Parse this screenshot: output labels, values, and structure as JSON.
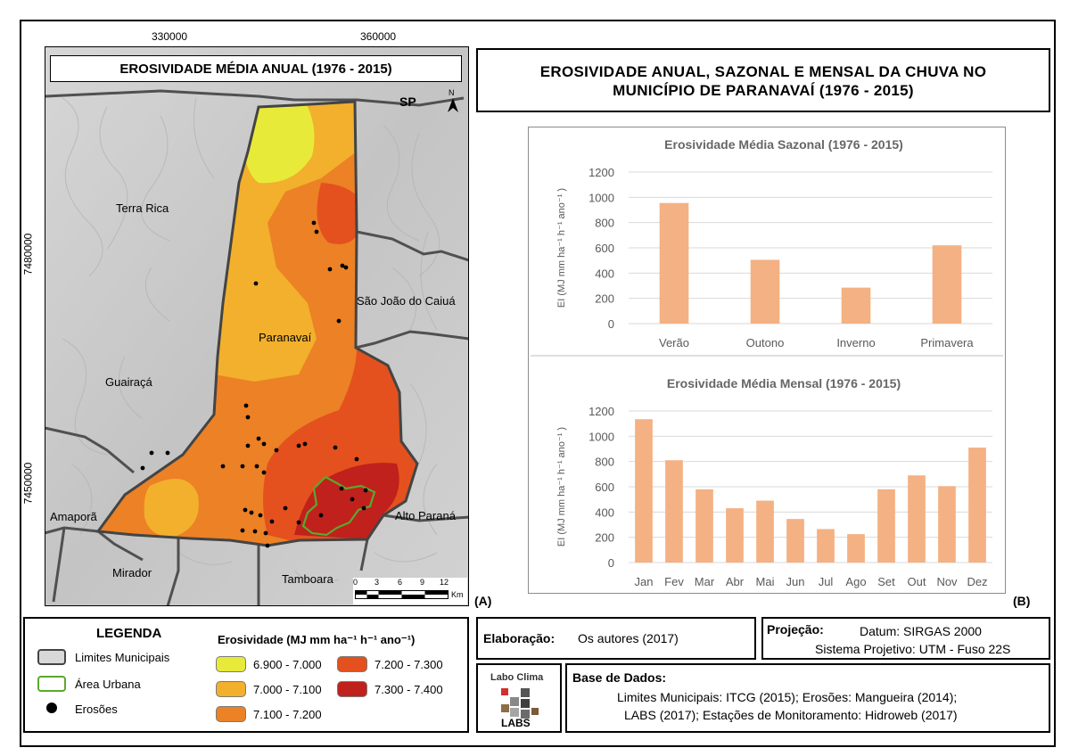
{
  "map": {
    "title": "EROSIVIDADE MÉDIA ANUAL (1976 - 2015)",
    "coords_top": [
      "330000",
      "360000"
    ],
    "coords_left": [
      "7480000",
      "7450000"
    ],
    "panel_label": "(A)",
    "north_label": "N",
    "scale_labels": [
      "0",
      "3",
      "6",
      "9",
      "12"
    ],
    "scale_unit": "Km",
    "places": {
      "sp": "SP",
      "terra_rica": "Terra Rica",
      "sao_joao": "São João do Caiuá",
      "paranavai": "Paranavaí",
      "guairaca": "Guairaçá",
      "amapora": "Amaporã",
      "alto_parana": "Alto Paraná",
      "mirador": "Mirador",
      "tamboara": "Tamboara"
    },
    "colors": {
      "c1": "#e8ea3a",
      "c2": "#f2b02c",
      "c3": "#ec8126",
      "c4": "#e4511e",
      "c5": "#c0211c",
      "urban": "#5aa830",
      "relief": "#c8c8c8"
    }
  },
  "main_title": {
    "line1": "EROSIVIDADE ANUAL, SAZONAL E MENSAL DA CHUVA NO",
    "line2": "MUNICÍPIO DE PARANAVAÍ  (1976 - 2015)"
  },
  "charts_panel_label": "(B)",
  "chart_data": [
    {
      "type": "bar",
      "title": "Erosividade  Média Sazonal (1976 - 2015)",
      "ylabel": "EI (MJ mm ha⁻¹ h⁻¹ ano⁻¹ )",
      "categories": [
        "Verão",
        "Outono",
        "Inverno",
        "Primavera"
      ],
      "values": [
        955,
        505,
        285,
        620
      ],
      "ylim": [
        0,
        1200
      ],
      "yticks": [
        "0",
        "200",
        "400",
        "600",
        "800",
        "1000",
        "1200"
      ],
      "grid": true,
      "color": "#f4b183"
    },
    {
      "type": "bar",
      "title": "Erosividade  Média Mensal (1976 - 2015)",
      "ylabel": "EI (MJ mm ha⁻¹ h⁻¹ ano⁻¹ )",
      "categories": [
        "Jan",
        "Fev",
        "Mar",
        "Abr",
        "Mai",
        "Jun",
        "Jul",
        "Ago",
        "Set",
        "Out",
        "Nov",
        "Dez"
      ],
      "values": [
        1135,
        810,
        580,
        430,
        490,
        345,
        265,
        225,
        580,
        690,
        605,
        910
      ],
      "ylim": [
        0,
        1200
      ],
      "yticks": [
        "0",
        "200",
        "400",
        "600",
        "800",
        "1000",
        "1200"
      ],
      "grid": true,
      "color": "#f4b183"
    }
  ],
  "legend": {
    "title": "LEGENDA",
    "limits": "Limites Municipais",
    "urban": "Área Urbana",
    "erosions": "Erosões",
    "eros_title": "Erosividade (MJ mm ha⁻¹ h⁻¹ ano⁻¹)",
    "classes": [
      "6.900 - 7.000",
      "7.000 - 7.100",
      "7.100 - 7.200",
      "7.200 - 7.300",
      "7.300 - 7.400"
    ]
  },
  "elaboracao": {
    "label": "Elaboração:",
    "value": "Os autores (2017)"
  },
  "projecao": {
    "label": "Projeção:",
    "datum": "Datum: SIRGAS 2000",
    "sistema": "Sistema Projetivo: UTM - Fuso 22S"
  },
  "base": {
    "label": "Base de Dados:",
    "line1": "Limites Municipais: ITCG (2015); Erosões: Mangueira (2014);",
    "line2": "LABS (2017); Estações de Monitoramento: Hidroweb (2017)"
  },
  "logo": {
    "text_top": "Labo Clima",
    "text_bottom": "LABS"
  }
}
